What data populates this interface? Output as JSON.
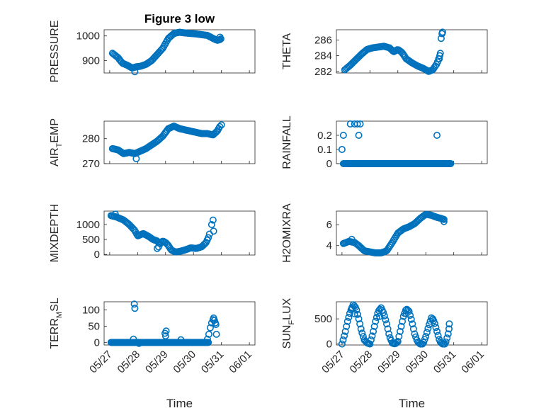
{
  "figure": {
    "title": "Figure 3 low",
    "marker_color": "#0072BD"
  },
  "chart_data": [
    {
      "id": "pressure",
      "type": "scatter",
      "title": "Figure 3 low",
      "ylabel": "PRESSURE",
      "xlabel": "",
      "ylim": [
        850,
        1025
      ],
      "yticks": [
        900,
        1000
      ],
      "xlim": [
        "05/27",
        "06/01"
      ],
      "show_xticklabels": false,
      "grid": true,
      "anchors": [
        [
          0.1,
          930
        ],
        [
          0.3,
          912
        ],
        [
          0.45,
          890
        ],
        [
          0.65,
          880
        ],
        [
          0.8,
          870
        ],
        [
          0.95,
          875
        ],
        [
          1.1,
          877
        ],
        [
          1.3,
          885
        ],
        [
          1.5,
          900
        ],
        [
          1.7,
          925
        ],
        [
          1.9,
          950
        ],
        [
          2.1,
          990
        ],
        [
          2.3,
          1010
        ],
        [
          2.5,
          1015
        ],
        [
          2.7,
          1012
        ],
        [
          2.9,
          1010
        ],
        [
          3.1,
          1008
        ],
        [
          3.3,
          1005
        ],
        [
          3.5,
          1002
        ],
        [
          3.7,
          990
        ],
        [
          3.85,
          982
        ],
        [
          3.95,
          985
        ],
        [
          4.0,
          990
        ]
      ],
      "extra_points": [
        [
          0.9,
          855
        ],
        [
          3.95,
          995
        ]
      ]
    },
    {
      "id": "theta",
      "type": "scatter",
      "ylabel": "THETA",
      "xlabel": "",
      "ylim": [
        281.8,
        287.3
      ],
      "yticks": [
        282,
        284,
        286
      ],
      "xlim": [
        "05/27",
        "06/01"
      ],
      "show_xticklabels": false,
      "grid": true,
      "anchors": [
        [
          0.1,
          282.2
        ],
        [
          0.3,
          282.8
        ],
        [
          0.5,
          283.5
        ],
        [
          0.7,
          284.2
        ],
        [
          0.9,
          284.8
        ],
        [
          1.1,
          285.0
        ],
        [
          1.3,
          285.1
        ],
        [
          1.5,
          285.2
        ],
        [
          1.7,
          285.0
        ],
        [
          1.85,
          284.5
        ],
        [
          2.0,
          284.8
        ],
        [
          2.15,
          284.4
        ],
        [
          2.3,
          283.6
        ],
        [
          2.5,
          283.1
        ],
        [
          2.7,
          282.7
        ],
        [
          2.9,
          282.4
        ],
        [
          3.1,
          282.0
        ],
        [
          3.25,
          282.2
        ],
        [
          3.4,
          283.0
        ],
        [
          3.5,
          284.0
        ]
      ],
      "extra_points": [
        [
          3.55,
          286.2
        ],
        [
          3.58,
          286.8
        ],
        [
          3.6,
          287.0
        ],
        [
          3.48,
          283.6
        ],
        [
          3.52,
          284.3
        ]
      ]
    },
    {
      "id": "air_temp",
      "type": "scatter",
      "ylabel": "AIR_TEMP",
      "ylabel_main": "AIR",
      "ylabel_sub": "T",
      "ylabel_rest": "EMP",
      "xlabel": "",
      "ylim": [
        270,
        287
      ],
      "yticks": [
        270,
        280
      ],
      "xlim": [
        "05/27",
        "06/01"
      ],
      "show_xticklabels": false,
      "grid": true,
      "anchors": [
        [
          0.1,
          276
        ],
        [
          0.3,
          275.5
        ],
        [
          0.5,
          274
        ],
        [
          0.7,
          274.5
        ],
        [
          0.9,
          274
        ],
        [
          1.1,
          275
        ],
        [
          1.3,
          276
        ],
        [
          1.5,
          277.5
        ],
        [
          1.7,
          279
        ],
        [
          1.9,
          281
        ],
        [
          2.1,
          284
        ],
        [
          2.3,
          285
        ],
        [
          2.5,
          284
        ],
        [
          2.7,
          283.5
        ],
        [
          2.9,
          283
        ],
        [
          3.1,
          282.5
        ],
        [
          3.3,
          282
        ],
        [
          3.5,
          282
        ],
        [
          3.7,
          281.5
        ],
        [
          3.85,
          283
        ],
        [
          3.95,
          285
        ]
      ],
      "extra_points": [
        [
          0.95,
          272
        ],
        [
          4.0,
          285.5
        ]
      ]
    },
    {
      "id": "rainfall",
      "type": "scatter",
      "ylabel": "RAINFALL",
      "xlabel": "",
      "ylim": [
        0,
        0.3
      ],
      "yticks": [
        0,
        0.1,
        0.2
      ],
      "xlim": [
        "05/27",
        "06/01"
      ],
      "show_xticklabels": false,
      "grid": true,
      "baseline": {
        "from": 0.05,
        "to": 3.9,
        "value": 0
      },
      "extra_points": [
        [
          0.0,
          0.1
        ],
        [
          0.05,
          0.2
        ],
        [
          0.3,
          0.28
        ],
        [
          0.45,
          0.28
        ],
        [
          0.55,
          0.28
        ],
        [
          0.65,
          0.28
        ],
        [
          0.6,
          0.2
        ],
        [
          3.4,
          0.2
        ]
      ]
    },
    {
      "id": "mixdepth",
      "type": "scatter",
      "ylabel": "MIXDEPTH",
      "xlabel": "",
      "ylim": [
        -20,
        1450
      ],
      "yticks": [
        0,
        500,
        1000
      ],
      "xlim": [
        "05/27",
        "06/01"
      ],
      "show_xticklabels": false,
      "grid": true,
      "anchors": [
        [
          0.05,
          1300
        ],
        [
          0.25,
          1250
        ],
        [
          0.5,
          1150
        ],
        [
          0.7,
          1000
        ],
        [
          0.9,
          800
        ],
        [
          1.0,
          620
        ],
        [
          1.2,
          700
        ],
        [
          1.4,
          600
        ],
        [
          1.55,
          500
        ],
        [
          1.7,
          450
        ],
        [
          1.8,
          350
        ],
        [
          1.9,
          450
        ],
        [
          2.0,
          400
        ],
        [
          2.1,
          300
        ],
        [
          2.2,
          150
        ],
        [
          2.35,
          80
        ],
        [
          2.5,
          100
        ],
        [
          2.7,
          150
        ],
        [
          2.9,
          220
        ],
        [
          3.1,
          200
        ],
        [
          3.3,
          260
        ],
        [
          3.45,
          400
        ],
        [
          3.55,
          600
        ],
        [
          3.6,
          800
        ]
      ],
      "extra_points": [
        [
          0.2,
          1350
        ],
        [
          1.7,
          200
        ],
        [
          1.75,
          250
        ],
        [
          3.65,
          1000
        ],
        [
          3.7,
          1150
        ],
        [
          3.72,
          780
        ]
      ]
    },
    {
      "id": "h2omixra",
      "type": "scatter",
      "ylabel": "H2OMIXRA",
      "xlabel": "",
      "ylim": [
        3.1,
        7.3
      ],
      "yticks": [
        4,
        6
      ],
      "xlim": [
        "05/27",
        "06/01"
      ],
      "show_xticklabels": false,
      "grid": true,
      "anchors": [
        [
          0.05,
          4.2
        ],
        [
          0.25,
          4.4
        ],
        [
          0.45,
          4.3
        ],
        [
          0.6,
          4.0
        ],
        [
          0.8,
          3.5
        ],
        [
          1.0,
          3.4
        ],
        [
          1.2,
          3.3
        ],
        [
          1.4,
          3.3
        ],
        [
          1.6,
          3.5
        ],
        [
          1.8,
          4.3
        ],
        [
          2.0,
          5.2
        ],
        [
          2.2,
          5.6
        ],
        [
          2.4,
          5.8
        ],
        [
          2.6,
          6.1
        ],
        [
          2.8,
          6.6
        ],
        [
          3.0,
          7.0
        ],
        [
          3.2,
          6.9
        ],
        [
          3.4,
          6.7
        ],
        [
          3.55,
          6.6
        ],
        [
          3.65,
          6.5
        ]
      ],
      "extra_points": [
        [
          3.65,
          6.3
        ],
        [
          0.35,
          4.6
        ]
      ]
    },
    {
      "id": "terr_msl",
      "type": "scatter",
      "ylabel": "TERR_MSL",
      "ylabel_main": "TERR",
      "ylabel_sub": "M",
      "ylabel_rest": "SL",
      "xlabel": "Time",
      "ylim": [
        -8,
        125
      ],
      "yticks": [
        0,
        50,
        100
      ],
      "xlim": [
        "05/27",
        "06/01"
      ],
      "xticks": [
        0,
        1,
        2,
        3,
        4,
        5
      ],
      "xticklabels": [
        "05/27",
        "05/28",
        "05/29",
        "05/30",
        "05/31",
        "06/01"
      ],
      "show_xticklabels": true,
      "grid": true,
      "baseline": {
        "from": 0.05,
        "to": 3.55,
        "value": 0
      },
      "extra_points": [
        [
          1.05,
          -3
        ],
        [
          0.9,
          105
        ],
        [
          0.88,
          118
        ],
        [
          0.85,
          10
        ],
        [
          2.0,
          20
        ],
        [
          2.02,
          35
        ],
        [
          1.98,
          28
        ],
        [
          3.5,
          10
        ],
        [
          3.55,
          25
        ],
        [
          3.6,
          45
        ],
        [
          3.65,
          60
        ],
        [
          3.7,
          70
        ],
        [
          3.72,
          75
        ],
        [
          3.75,
          68
        ],
        [
          3.78,
          60
        ],
        [
          3.8,
          55
        ],
        [
          3.82,
          25
        ],
        [
          2.55,
          8
        ]
      ]
    },
    {
      "id": "sun_flux",
      "type": "scatter",
      "ylabel": "SUN_FLUX",
      "ylabel_main": "SUN",
      "ylabel_sub": "F",
      "ylabel_rest": "LUX",
      "xlabel": "Time",
      "ylim": [
        -20,
        840
      ],
      "yticks": [
        0,
        500
      ],
      "xlim": [
        "05/27",
        "06/01"
      ],
      "xticks": [
        0,
        1,
        2,
        3,
        4,
        5
      ],
      "xticklabels": [
        "05/27",
        "05/28",
        "05/29",
        "05/30",
        "05/31",
        "06/01"
      ],
      "show_xticklabels": true,
      "grid": true,
      "anchors": [
        [
          0.0,
          0
        ],
        [
          0.1,
          200
        ],
        [
          0.2,
          450
        ],
        [
          0.3,
          650
        ],
        [
          0.4,
          780
        ],
        [
          0.5,
          720
        ],
        [
          0.6,
          500
        ],
        [
          0.7,
          250
        ],
        [
          0.8,
          80
        ],
        [
          0.9,
          20
        ],
        [
          1.0,
          0
        ],
        [
          1.1,
          200
        ],
        [
          1.2,
          450
        ],
        [
          1.3,
          650
        ],
        [
          1.4,
          720
        ],
        [
          1.5,
          600
        ],
        [
          1.6,
          400
        ],
        [
          1.7,
          150
        ],
        [
          1.8,
          20
        ],
        [
          1.9,
          0
        ],
        [
          2.0,
          50
        ],
        [
          2.1,
          300
        ],
        [
          2.2,
          550
        ],
        [
          2.3,
          700
        ],
        [
          2.4,
          650
        ],
        [
          2.5,
          450
        ],
        [
          2.6,
          200
        ],
        [
          2.7,
          50
        ],
        [
          2.8,
          0
        ],
        [
          2.9,
          0
        ],
        [
          3.0,
          150
        ],
        [
          3.1,
          350
        ],
        [
          3.2,
          520
        ],
        [
          3.3,
          450
        ],
        [
          3.4,
          250
        ],
        [
          3.5,
          50
        ],
        [
          3.6,
          0
        ],
        [
          3.7,
          0
        ],
        [
          3.8,
          200
        ],
        [
          3.85,
          450
        ]
      ],
      "extra_points": [
        [
          0.35,
          700
        ],
        [
          0.45,
          600
        ],
        [
          1.35,
          550
        ],
        [
          2.3,
          600
        ],
        [
          3.25,
          500
        ],
        [
          3.83,
          300
        ]
      ]
    }
  ]
}
